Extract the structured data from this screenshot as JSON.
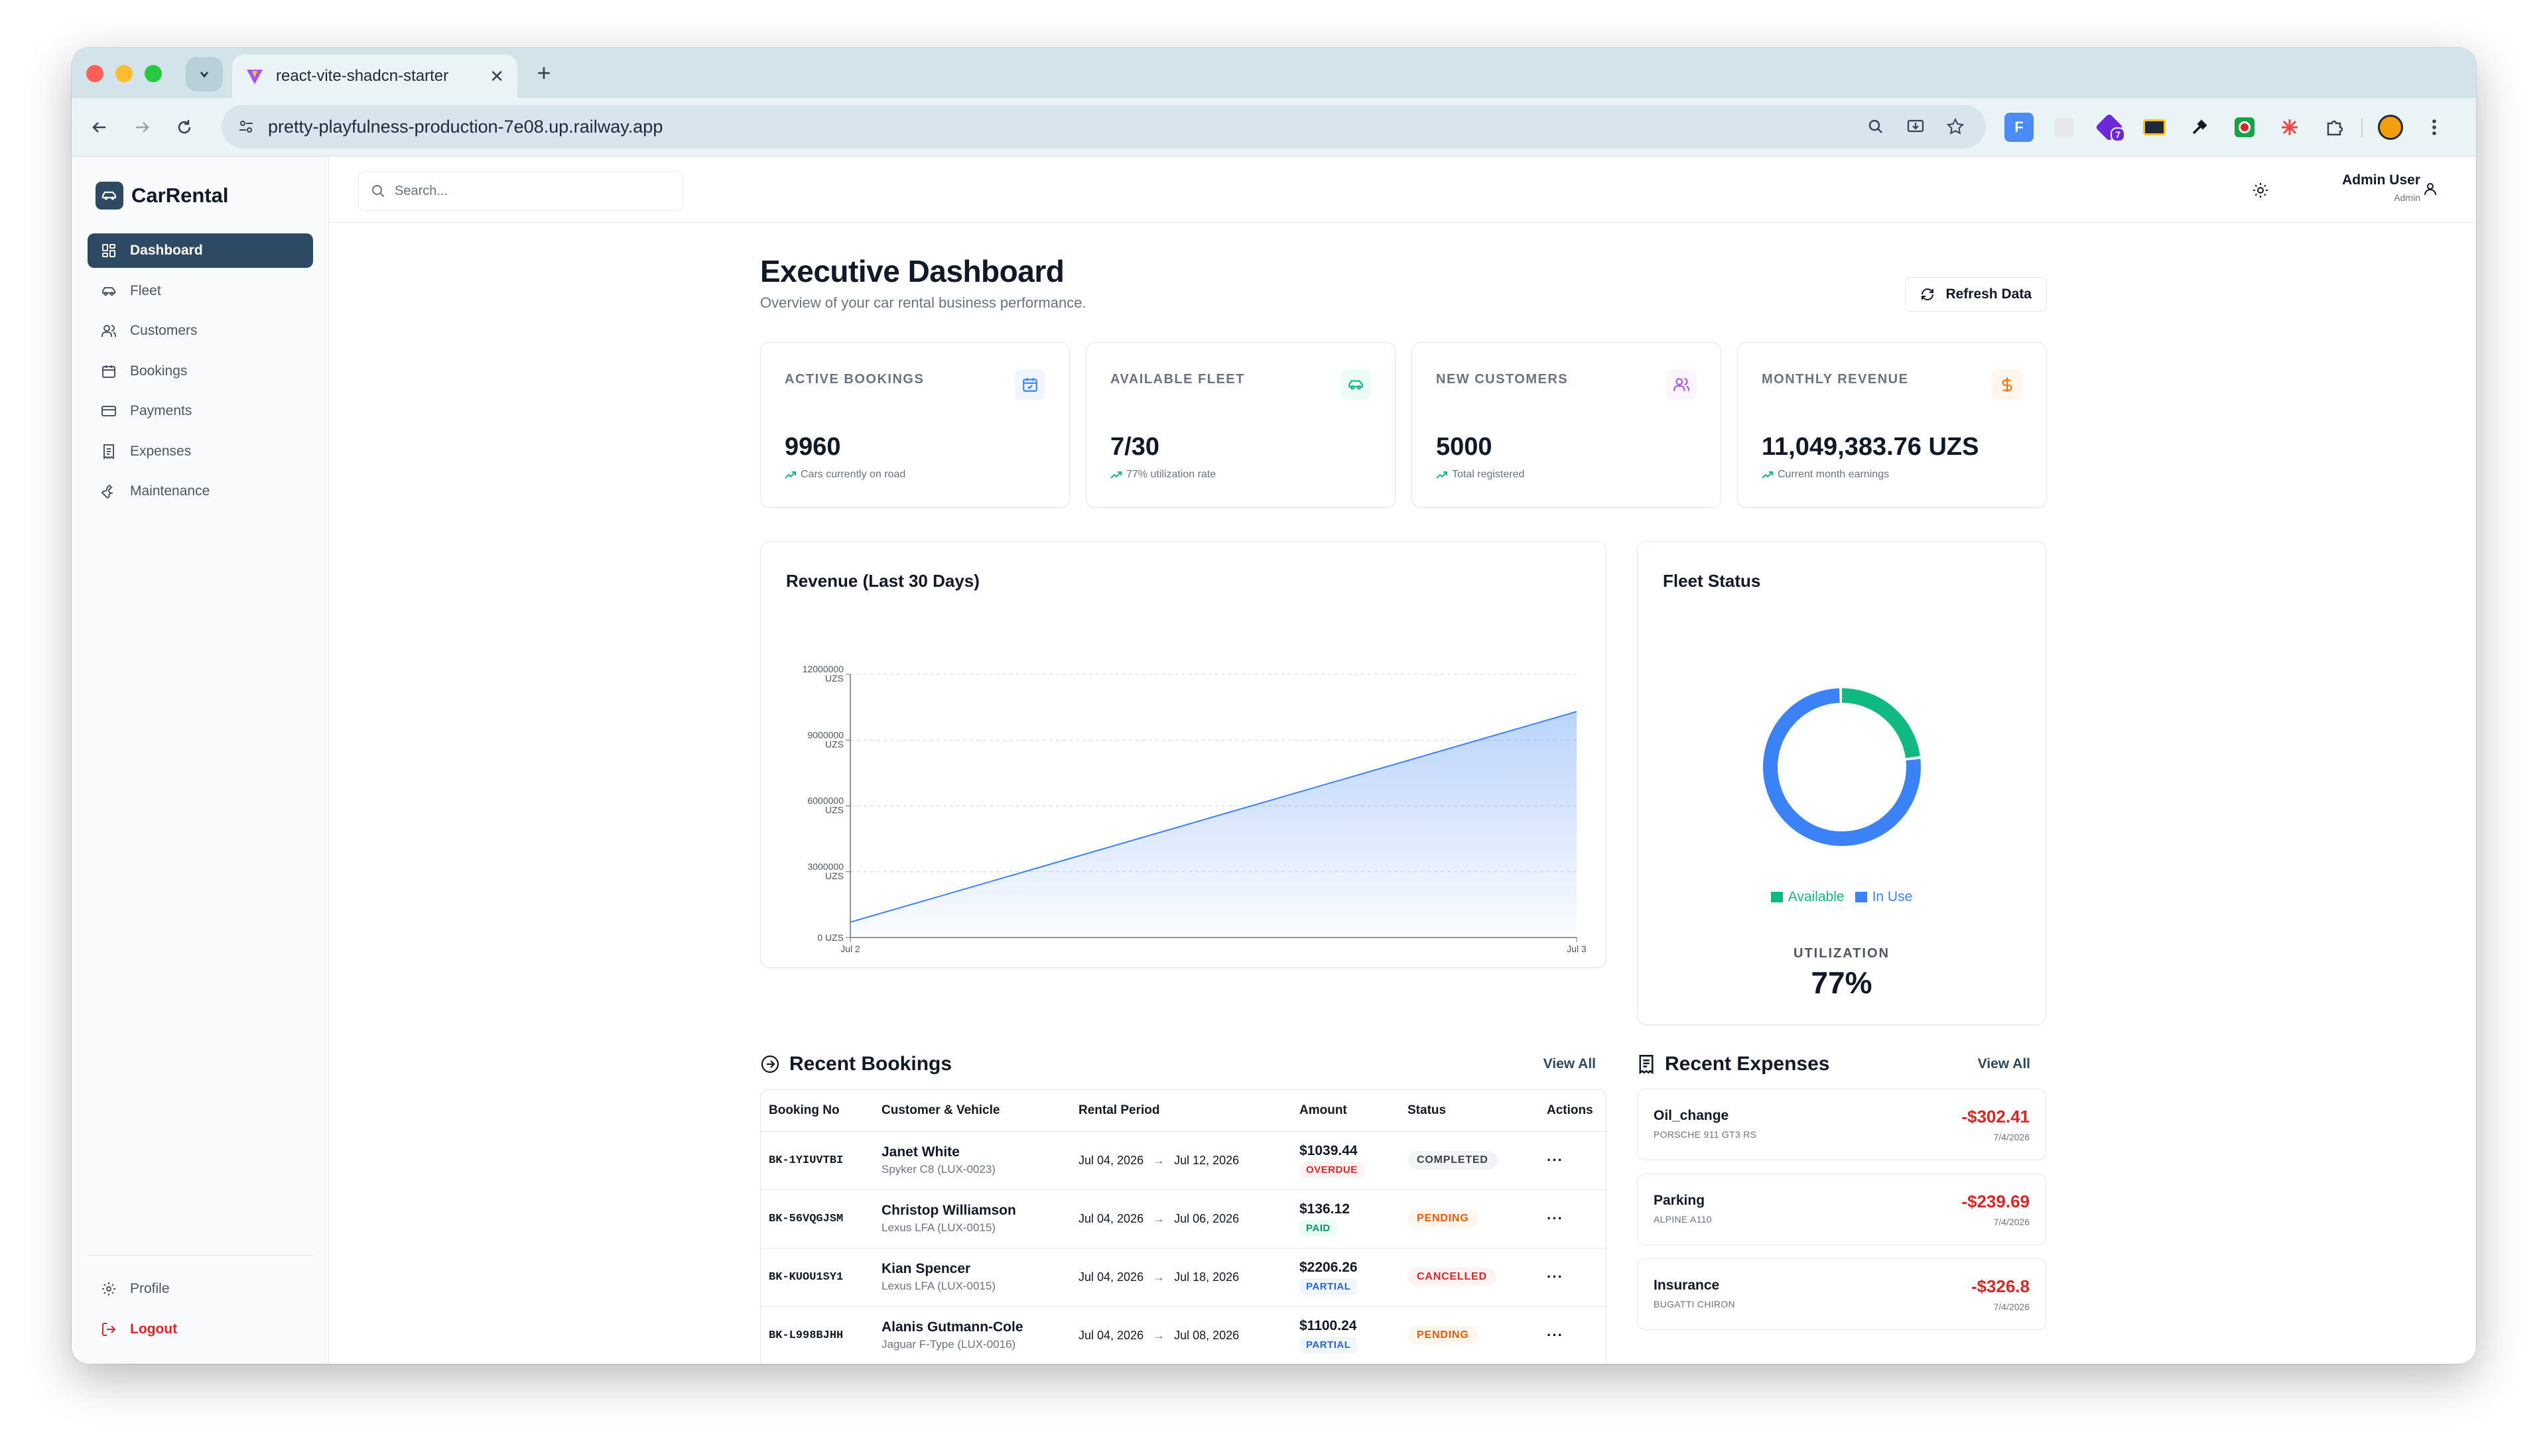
{
  "browser": {
    "tab_title": "react-vite-shadcn-starter",
    "tab_close": "✕",
    "new_tab": "+",
    "url": "pretty-playfulness-production-7e08.up.railway.app",
    "ext_badge": "7"
  },
  "app": {
    "brand": "CarRental",
    "nav": [
      {
        "label": "Dashboard",
        "icon": "dashboard-icon",
        "active": true
      },
      {
        "label": "Fleet",
        "icon": "car-icon"
      },
      {
        "label": "Customers",
        "icon": "users-icon"
      },
      {
        "label": "Bookings",
        "icon": "calendar-icon"
      },
      {
        "label": "Payments",
        "icon": "credit-card-icon"
      },
      {
        "label": "Expenses",
        "icon": "receipt-icon"
      },
      {
        "label": "Maintenance",
        "icon": "wrench-icon"
      }
    ],
    "bottom": {
      "profile": "Profile",
      "logout": "Logout"
    },
    "search_placeholder": "Search...",
    "user": {
      "name": "Admin User",
      "role": "Admin"
    }
  },
  "page": {
    "title": "Executive Dashboard",
    "subtitle": "Overview of your car rental business performance.",
    "refresh_label": "Refresh Data"
  },
  "stats": [
    {
      "label": "Active Bookings",
      "value": "9960",
      "note": "Cars currently on road",
      "icon": "calendar-icon",
      "color": "#3b82f6",
      "bg": "#eff6ff"
    },
    {
      "label": "Available Fleet",
      "value": "7/30",
      "note": "77% utilization rate",
      "icon": "car-icon",
      "color": "#10b981",
      "bg": "#ecfdf5"
    },
    {
      "label": "New Customers",
      "value": "5000",
      "note": "Total registered",
      "icon": "users-icon",
      "color": "#a855f7",
      "bg": "#faf5ff"
    },
    {
      "label": "Monthly Revenue",
      "value": "11,049,383.76 UZS",
      "note": "Current month earnings",
      "icon": "dollar-icon",
      "color": "#f97316",
      "bg": "#fff7ed"
    }
  ],
  "revenue": {
    "title": "Revenue (Last 30 Days)",
    "y_ticks": [
      {
        "value": "12000000",
        "unit": "UZS"
      },
      {
        "value": "9000000",
        "unit": "UZS"
      },
      {
        "value": "6000000",
        "unit": "UZS"
      },
      {
        "value": "3000000",
        "unit": "UZS"
      },
      {
        "value": "0 UZS",
        "unit": ""
      }
    ],
    "x_ticks": [
      "Jul 2",
      "Jul 3"
    ]
  },
  "chart_data": [
    {
      "type": "area",
      "title": "Revenue (Last 30 Days)",
      "x": [
        "Jul 2",
        "Jul 3"
      ],
      "series": [
        {
          "values": [
            700000,
            10300000
          ]
        }
      ],
      "ylim": [
        0,
        12000000
      ],
      "y_unit": "UZS",
      "grid": true,
      "color": "#3b82f6"
    },
    {
      "type": "pie",
      "title": "Fleet Status",
      "categories": [
        "Available",
        "In Use"
      ],
      "values": [
        7,
        23
      ],
      "colors": [
        "#10b981",
        "#3b82f6"
      ],
      "donut": true,
      "legend": "bottom"
    }
  ],
  "fleet": {
    "title": "Fleet Status",
    "legend": [
      {
        "label": "Available",
        "color": "#10b981"
      },
      {
        "label": "In Use",
        "color": "#3b82f6"
      }
    ],
    "utilization_label": "UTILIZATION",
    "utilization_value": "77%"
  },
  "bookings": {
    "title": "Recent Bookings",
    "view_all": "View All",
    "headers": [
      "Booking No",
      "Customer & Vehicle",
      "Rental Period",
      "Amount",
      "Status",
      "Actions"
    ],
    "arrow": "→",
    "actions_glyph": "···",
    "rows": [
      {
        "no": "BK-1YIUVTBI",
        "name": "Janet White",
        "vehicle": "Spyker C8 (LUX-0023)",
        "start": "Jul 04, 2026",
        "end": "Jul 12, 2026",
        "amount": "$1039.44",
        "pay": "OVERDUE",
        "status": "COMPLETED"
      },
      {
        "no": "BK-56VQGJSM",
        "name": "Christop Williamson",
        "vehicle": "Lexus LFA (LUX-0015)",
        "start": "Jul 04, 2026",
        "end": "Jul 06, 2026",
        "amount": "$136.12",
        "pay": "PAID",
        "status": "PENDING"
      },
      {
        "no": "BK-KUOU1SY1",
        "name": "Kian Spencer",
        "vehicle": "Lexus LFA (LUX-0015)",
        "start": "Jul 04, 2026",
        "end": "Jul 18, 2026",
        "amount": "$2206.26",
        "pay": "PARTIAL",
        "status": "CANCELLED"
      },
      {
        "no": "BK-L998BJHH",
        "name": "Alanis Gutmann-Cole",
        "vehicle": "Jaguar F-Type (LUX-0016)",
        "start": "Jul 04, 2026",
        "end": "Jul 08, 2026",
        "amount": "$1100.24",
        "pay": "PARTIAL",
        "status": "PENDING"
      }
    ]
  },
  "expenses": {
    "title": "Recent Expenses",
    "view_all": "View All",
    "items": [
      {
        "category": "Oil_change",
        "vehicle": "PORSCHE 911 GT3 RS",
        "amount": "-$302.41",
        "date": "7/4/2026"
      },
      {
        "category": "Parking",
        "vehicle": "ALPINE A110",
        "amount": "-$239.69",
        "date": "7/4/2026"
      },
      {
        "category": "Insurance",
        "vehicle": "BUGATTI CHIRON",
        "amount": "-$326.8",
        "date": "7/4/2026"
      }
    ]
  }
}
